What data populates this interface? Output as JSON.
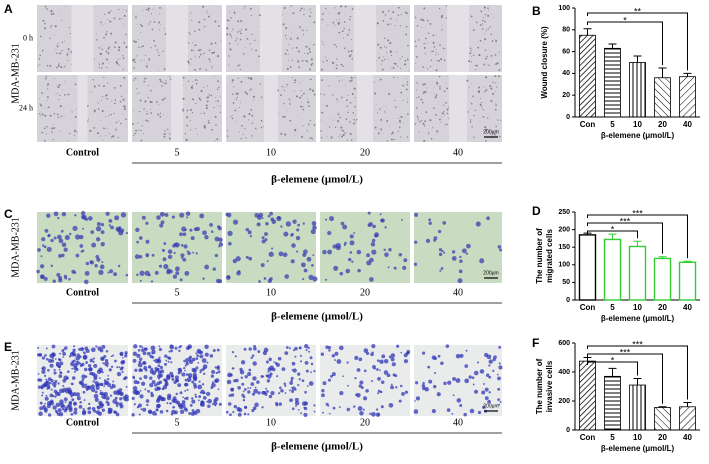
{
  "panels": [
    {
      "letter": "A",
      "cell_line": "MDA-MB-231",
      "rows": [
        "0 h",
        "24 h"
      ],
      "scale": "200μm",
      "columns": [
        "Control",
        "5",
        "10",
        "20",
        "40"
      ],
      "xlabel": "β-elemene (μmol/L)"
    },
    {
      "letter": "C",
      "cell_line": "MDA-MB-231",
      "scale": "200μm",
      "columns": [
        "Control",
        "5",
        "10",
        "20",
        "40"
      ],
      "xlabel": "β-elemene (μmol/L)"
    },
    {
      "letter": "E",
      "cell_line": "MDA-MB-231",
      "scale": "200μm",
      "columns": [
        "Control",
        "5",
        "10",
        "20",
        "40"
      ],
      "xlabel": "β-elemene (μmol/L)"
    }
  ],
  "chart_data": [
    {
      "type": "bar",
      "panel_label": "B",
      "ylabel": [
        "Wound closure (%)"
      ],
      "xlabel": "β-elemene (μmol/L)",
      "categories": [
        "Con",
        "5",
        "10",
        "20",
        "40"
      ],
      "values": [
        75,
        63,
        50,
        36,
        37
      ],
      "errors": [
        6,
        4,
        6,
        9,
        3
      ],
      "color": "#000000",
      "ylim": [
        0,
        100
      ],
      "yticks": [
        0,
        20,
        40,
        60,
        80,
        100
      ],
      "significance": [
        {
          "label": "*",
          "from": "Con",
          "to": "20"
        },
        {
          "label": "**",
          "from": "Con",
          "to": "40"
        }
      ]
    },
    {
      "type": "bar",
      "panel_label": "D",
      "ylabel": [
        "The number of",
        "migrated cells"
      ],
      "xlabel": "β-elemene (μmol/L)",
      "categories": [
        "Con",
        "5",
        "10",
        "20",
        "40"
      ],
      "values": [
        185,
        172,
        152,
        118,
        107
      ],
      "errors": [
        5,
        15,
        15,
        5,
        3
      ],
      "colors": [
        "#000000",
        "#33cc33",
        "#33cc33",
        "#33cc33",
        "#33cc33"
      ],
      "ylim": [
        0,
        250
      ],
      "yticks": [
        0,
        50,
        100,
        150,
        200,
        250
      ],
      "significance": [
        {
          "label": "*",
          "from": "Con",
          "to": "10"
        },
        {
          "label": "***",
          "from": "Con",
          "to": "20"
        },
        {
          "label": "***",
          "from": "Con",
          "to": "40"
        }
      ]
    },
    {
      "type": "bar",
      "panel_label": "F",
      "ylabel": [
        "The number of",
        "invasive cells"
      ],
      "xlabel": "β-elemene (μmol/L)",
      "categories": [
        "Con",
        "5",
        "10",
        "20",
        "40"
      ],
      "values": [
        475,
        370,
        310,
        155,
        160
      ],
      "errors": [
        25,
        55,
        45,
        5,
        30
      ],
      "color": "#000000",
      "ylim": [
        0,
        600
      ],
      "yticks": [
        0,
        200,
        400,
        600
      ],
      "significance": [
        {
          "label": "*",
          "from": "Con",
          "to": "10"
        },
        {
          "label": "***",
          "from": "Con",
          "to": "20"
        },
        {
          "label": "***",
          "from": "Con",
          "to": "40"
        }
      ]
    }
  ]
}
